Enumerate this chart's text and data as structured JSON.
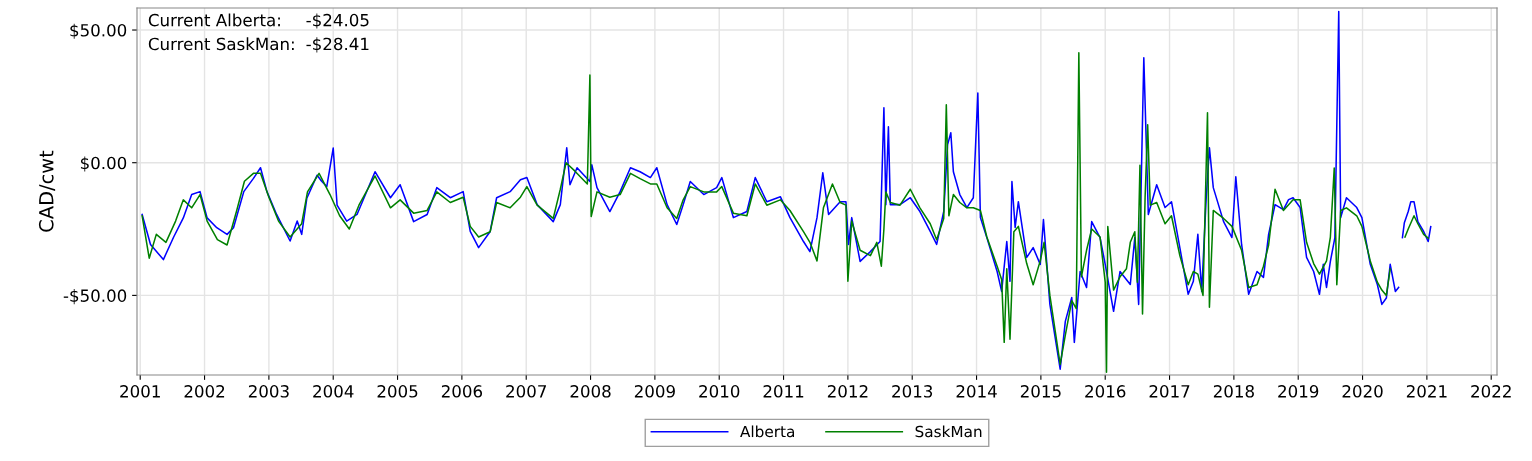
{
  "chart_data": {
    "type": "line",
    "ylabel": "CAD/cwt",
    "annotations": [
      "Current Alberta:",
      "-$24.05",
      "Current SaskMan:",
      "-$28.41"
    ],
    "xlim": [
      2000.95,
      2022.09
    ],
    "ylim": [
      -80,
      58.3
    ],
    "xticks": [
      2001,
      2002,
      2003,
      2004,
      2005,
      2006,
      2007,
      2008,
      2009,
      2010,
      2011,
      2012,
      2013,
      2014,
      2015,
      2016,
      2017,
      2018,
      2019,
      2020,
      2021,
      2022
    ],
    "yticks": [
      {
        "value": -50,
        "label": "-$50.00"
      },
      {
        "value": 0,
        "label": "$0.00"
      },
      {
        "value": 50,
        "label": "$50.00"
      }
    ],
    "grid": true,
    "legend": "bottom",
    "marker": "none",
    "line_style": "solid",
    "series": [
      {
        "name": "Alberta",
        "color": "#0000ff",
        "x": [
          2001.03,
          2001.16,
          2001.36,
          2001.52,
          2001.67,
          2001.8,
          2001.93,
          2002.04,
          2002.19,
          2002.35,
          2002.45,
          2002.61,
          2002.76,
          2002.87,
          2002.97,
          2003.12,
          2003.33,
          2003.44,
          2003.51,
          2003.59,
          2003.75,
          2003.82,
          2003.9,
          2004.0,
          2004.06,
          2004.21,
          2004.37,
          2004.65,
          2004.89,
          2005.04,
          2005.25,
          2005.46,
          2005.61,
          2005.82,
          2006.02,
          2006.13,
          2006.26,
          2006.44,
          2006.54,
          2006.75,
          2006.91,
          2007.01,
          2007.17,
          2007.42,
          2007.53,
          2007.63,
          2007.68,
          2007.79,
          2007.99,
          2008.02,
          2008.1,
          2008.3,
          2008.46,
          2008.62,
          2008.77,
          2008.93,
          2009.03,
          2009.19,
          2009.34,
          2009.44,
          2009.55,
          2009.76,
          2009.96,
          2010.04,
          2010.22,
          2010.43,
          2010.56,
          2010.74,
          2010.95,
          2011.1,
          2011.31,
          2011.41,
          2011.52,
          2011.61,
          2011.7,
          2011.88,
          2011.97,
          2012.01,
          2012.06,
          2012.19,
          2012.35,
          2012.5,
          2012.56,
          2012.59,
          2012.63,
          2012.66,
          2012.81,
          2012.97,
          2013.12,
          2013.28,
          2013.38,
          2013.49,
          2013.55,
          2013.6,
          2013.64,
          2013.74,
          2013.85,
          2013.95,
          2014.02,
          2014.06,
          2014.16,
          2014.32,
          2014.39,
          2014.47,
          2014.52,
          2014.55,
          2014.6,
          2014.65,
          2014.78,
          2014.88,
          2014.99,
          2015.04,
          2015.14,
          2015.3,
          2015.38,
          2015.48,
          2015.52,
          2015.61,
          2015.71,
          2015.79,
          2015.92,
          2016.0,
          2016.13,
          2016.23,
          2016.39,
          2016.46,
          2016.52,
          2016.6,
          2016.67,
          2016.8,
          2016.93,
          2017.03,
          2017.16,
          2017.29,
          2017.37,
          2017.44,
          2017.5,
          2017.57,
          2017.62,
          2017.68,
          2017.84,
          2017.97,
          2018.03,
          2018.12,
          2018.23,
          2018.36,
          2018.46,
          2018.54,
          2018.64,
          2018.77,
          2018.85,
          2018.92,
          2019.03,
          2019.13,
          2019.24,
          2019.33,
          2019.39,
          2019.44,
          2019.5,
          2019.57,
          2019.63,
          2019.66,
          2019.75,
          2019.91,
          2019.99,
          2020.12,
          2020.23,
          2020.3,
          2020.37,
          2020.43,
          2020.51,
          2020.56,
          2020.59,
          2020.62,
          2020.65,
          2020.71,
          2020.75,
          2020.8,
          2020.86,
          2020.95,
          2021.02,
          2021.06
        ],
        "values": [
          -19.5,
          -30.8,
          -36.5,
          -28,
          -20.8,
          -12,
          -10.9,
          -20.8,
          -24.5,
          -27,
          -24.5,
          -10.9,
          -5.9,
          -1.9,
          -10.9,
          -19.5,
          -29.5,
          -22,
          -27,
          -13.4,
          -4.7,
          -7,
          -9,
          5.5,
          -16,
          -22,
          -19.5,
          -3.4,
          -13.2,
          -8.3,
          -22.2,
          -19.5,
          -9.4,
          -13.2,
          -10.9,
          -25.9,
          -32,
          -25.9,
          -13.2,
          -10.9,
          -6.4,
          -5.6,
          -15.8,
          -22.2,
          -15.8,
          5.6,
          -8.3,
          -1.9,
          -7.1,
          -0.8,
          -9.4,
          -18.4,
          -10.9,
          -1.9,
          -3.4,
          -5.6,
          -1.9,
          -15.8,
          -23.3,
          -15.8,
          -7.1,
          -12,
          -9.4,
          -5.6,
          -20.7,
          -18.4,
          -5.6,
          -14.7,
          -12.8,
          -20.7,
          -29.7,
          -33.5,
          -20.7,
          -3.8,
          -19.5,
          -14.7,
          -14.7,
          -30.8,
          -20.7,
          -37.2,
          -33.5,
          -29.7,
          20.7,
          -15.8,
          13.5,
          -15.8,
          -15.8,
          -13.2,
          -18.4,
          -25.9,
          -30.8,
          -18.4,
          6.8,
          11.3,
          -3.4,
          -12,
          -16.9,
          -13.2,
          26.3,
          -20.7,
          -28.2,
          -41,
          -48.5,
          -29.7,
          -44.7,
          -7.1,
          -24.4,
          -14.7,
          -35.7,
          -32,
          -38.3,
          -21.4,
          -53.4,
          -77.8,
          -59.8,
          -50.8,
          -67.7,
          -41,
          -47,
          -22.2,
          -28.2,
          -38.3,
          -56,
          -41,
          -45.9,
          -28.2,
          -53.4,
          39.5,
          -19.5,
          -8.3,
          -16.9,
          -14.7,
          -32,
          -49.6,
          -44.7,
          -27,
          -48.5,
          -13.2,
          5.6,
          -9.4,
          -22.2,
          -28.2,
          -5.3,
          -30.8,
          -49.6,
          -41,
          -43.2,
          -27,
          -15.8,
          -17.7,
          -13.9,
          -13.2,
          -16.9,
          -35.7,
          -41,
          -49.6,
          -38.3,
          -47,
          -37.2,
          -28.2,
          57,
          -20.7,
          -13.2,
          -16.9,
          -20.7,
          -38.3,
          -45.9,
          -53.4,
          -51,
          -38.3,
          -48.5,
          -47,
          null,
          -28.2,
          -22.6,
          -18.4,
          -14.7,
          -14.7,
          -22.2,
          -25.9,
          -29.7,
          -24.1
        ]
      },
      {
        "name": "SaskMan",
        "color": "#008000",
        "x": [
          2001.03,
          2001.14,
          2001.25,
          2001.4,
          2001.55,
          2001.67,
          2001.8,
          2001.93,
          2002.04,
          2002.2,
          2002.35,
          2002.5,
          2002.62,
          2002.76,
          2002.87,
          2003.0,
          2003.15,
          2003.33,
          2003.51,
          2003.6,
          2003.78,
          2003.95,
          2004.1,
          2004.25,
          2004.4,
          2004.65,
          2004.89,
          2005.04,
          2005.25,
          2005.46,
          2005.61,
          2005.82,
          2006.02,
          2006.13,
          2006.26,
          2006.44,
          2006.54,
          2006.75,
          2006.91,
          2007.01,
          2007.17,
          2007.42,
          2007.53,
          2007.62,
          2007.75,
          2007.95,
          2007.99,
          2008.01,
          2008.1,
          2008.3,
          2008.46,
          2008.62,
          2008.77,
          2008.93,
          2009.03,
          2009.19,
          2009.34,
          2009.44,
          2009.55,
          2009.76,
          2009.96,
          2010.04,
          2010.22,
          2010.43,
          2010.56,
          2010.74,
          2010.95,
          2011.1,
          2011.31,
          2011.41,
          2011.52,
          2011.62,
          2011.76,
          2011.88,
          2011.97,
          2012.0,
          2012.06,
          2012.19,
          2012.35,
          2012.45,
          2012.52,
          2012.56,
          2012.59,
          2012.66,
          2012.81,
          2012.97,
          2013.12,
          2013.28,
          2013.38,
          2013.49,
          2013.53,
          2013.57,
          2013.64,
          2013.74,
          2013.85,
          2013.95,
          2014.06,
          2014.16,
          2014.32,
          2014.39,
          2014.43,
          2014.47,
          2014.52,
          2014.58,
          2014.65,
          2014.78,
          2014.88,
          2014.99,
          2015.05,
          2015.14,
          2015.3,
          2015.38,
          2015.48,
          2015.55,
          2015.59,
          2015.63,
          2015.71,
          2015.79,
          2015.92,
          2016.0,
          2016.02,
          2016.04,
          2016.13,
          2016.23,
          2016.33,
          2016.39,
          2016.46,
          2016.5,
          2016.54,
          2016.58,
          2016.62,
          2016.66,
          2016.7,
          2016.8,
          2016.93,
          2017.03,
          2017.16,
          2017.29,
          2017.37,
          2017.44,
          2017.52,
          2017.59,
          2017.62,
          2017.68,
          2017.84,
          2017.97,
          2018.12,
          2018.23,
          2018.36,
          2018.46,
          2018.54,
          2018.64,
          2018.77,
          2018.92,
          2019.03,
          2019.13,
          2019.24,
          2019.33,
          2019.44,
          2019.5,
          2019.56,
          2019.6,
          2019.66,
          2019.75,
          2019.91,
          2019.99,
          2020.12,
          2020.23,
          2020.3,
          2020.37,
          2020.43,
          2020.55,
          2020.66,
          2020.71,
          2020.8,
          2020.86,
          2020.95,
          2021.02
        ],
        "values": [
          -20,
          -36,
          -27,
          -30,
          -22,
          -14,
          -17,
          -12,
          -22,
          -29,
          -31,
          -18,
          -7,
          -4,
          -4,
          -13,
          -22,
          -28,
          -23,
          -11,
          -4,
          -12,
          -20,
          -25,
          -16,
          -5,
          -17,
          -14,
          -19,
          -18,
          -11,
          -15,
          -13,
          -24,
          -28,
          -26,
          -15,
          -17,
          -13,
          -9,
          -16,
          -21,
          -10,
          0,
          -3,
          -8,
          33,
          -20.3,
          -11,
          -13,
          -12,
          -4,
          -6,
          -8,
          -8,
          -17,
          -21,
          -14,
          -9,
          -11,
          -11,
          -9,
          -19,
          -20,
          -8,
          -16,
          -14,
          -18,
          -26,
          -30,
          -37,
          -17,
          -8,
          -15,
          -16,
          -44.7,
          -22,
          -33,
          -35,
          -30,
          -39,
          -25,
          -11,
          -15,
          -16,
          -10,
          -17,
          -23,
          -29,
          -21,
          21.8,
          -20,
          -12,
          -15,
          -17,
          -17,
          -18,
          -28,
          -39,
          -44,
          -67.7,
          -40,
          -66.5,
          -26,
          -24,
          -38,
          -46,
          -37,
          -30,
          -50,
          -76,
          -65,
          -52,
          -55,
          41.4,
          -43,
          -33,
          -25,
          -28,
          -45,
          -79,
          -24,
          -48,
          -43,
          -40,
          -30,
          -26,
          -45,
          -1,
          -57,
          -13,
          14.3,
          -16,
          -15,
          -23,
          -20,
          -35,
          -46,
          -41,
          -42,
          -50,
          18.8,
          -54.5,
          -18,
          -21,
          -24,
          -33,
          -47,
          -46,
          -39,
          -31,
          -10,
          -18,
          -14,
          -14,
          -30,
          -38,
          -42,
          -37,
          -28,
          -2,
          -46,
          -18,
          -17,
          -20,
          -24,
          -37,
          -45,
          -48,
          -50,
          -40,
          null,
          -28,
          -25,
          -20,
          -23,
          -27,
          -28.4
        ]
      }
    ]
  }
}
